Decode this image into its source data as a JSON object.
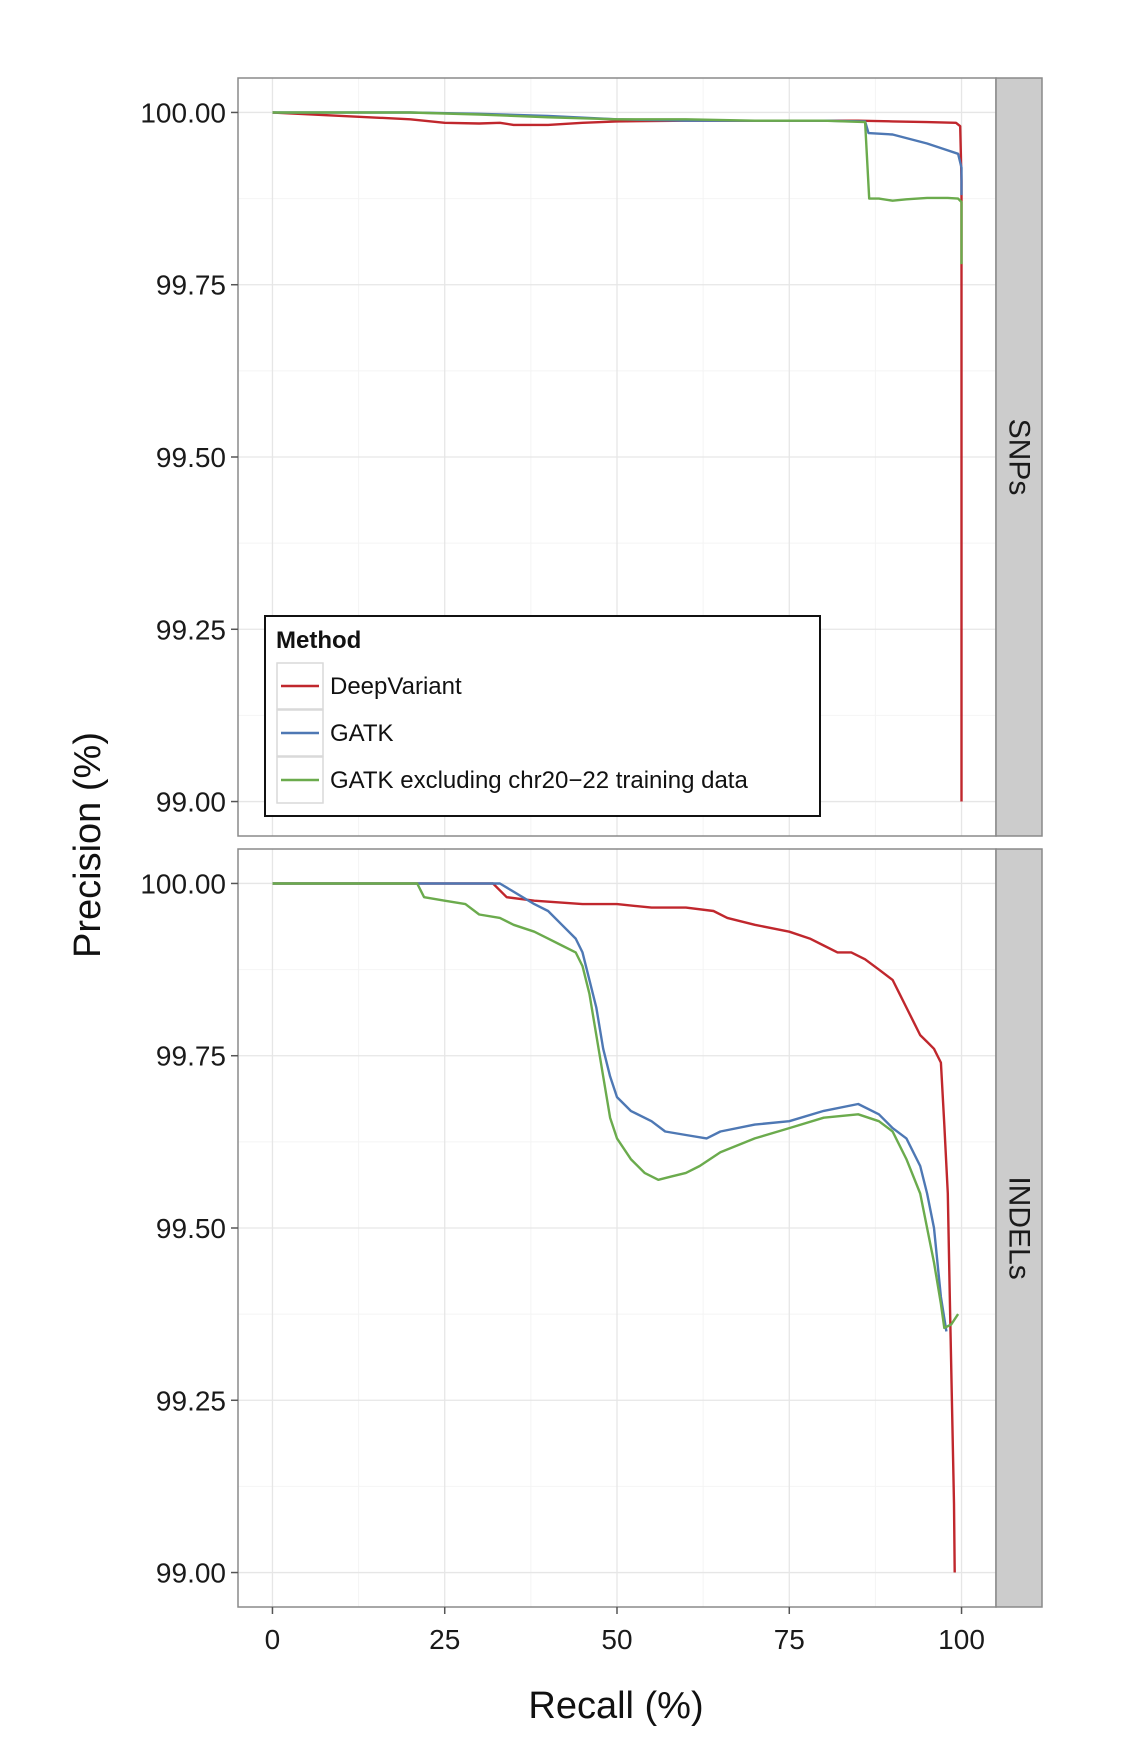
{
  "chart_data": {
    "type": "line",
    "xlabel": "Recall (%)",
    "ylabel": "Precision (%)",
    "xlim": [
      -5,
      105
    ],
    "ylim": [
      98.95,
      100.05
    ],
    "x_ticks": [
      "0",
      "25",
      "50",
      "75",
      "100"
    ],
    "y_ticks": [
      "99.00",
      "99.25",
      "99.50",
      "99.75",
      "100.00"
    ],
    "grid": true,
    "legend": {
      "title": "Method",
      "placement": "bottom-left of top panel",
      "entries": [
        "DeepVariant",
        "GATK",
        "GATK excluding chr20−22 training data"
      ]
    },
    "colors": {
      "DeepVariant": "#c0272d",
      "GATK": "#4e78b4",
      "GATK excluding chr20−22 training data": "#6bab4d",
      "strip": "#cccccc"
    },
    "panels": [
      {
        "strip_label": "SNPs",
        "series": [
          {
            "name": "DeepVariant",
            "x": [
              0,
              10,
              20,
              25,
              30,
              33,
              35,
              40,
              45,
              50,
              60,
              70,
              80,
              85,
              90,
              95,
              99.2,
              99.8,
              100,
              100,
              100
            ],
            "y": [
              100.0,
              99.995,
              99.99,
              99.985,
              99.984,
              99.985,
              99.982,
              99.982,
              99.985,
              99.987,
              99.988,
              99.988,
              99.988,
              99.988,
              99.987,
              99.986,
              99.985,
              99.98,
              99.9,
              99.5,
              99.0
            ]
          },
          {
            "name": "GATK",
            "x": [
              0,
              10,
              20,
              30,
              40,
              50,
              60,
              70,
              80,
              86,
              86.5,
              90,
              95,
              98,
              99.5,
              100,
              100
            ],
            "y": [
              100.0,
              100.0,
              100.0,
              99.998,
              99.995,
              99.99,
              99.988,
              99.988,
              99.988,
              99.987,
              99.97,
              99.968,
              99.955,
              99.945,
              99.94,
              99.92,
              99.88
            ]
          },
          {
            "name": "GATK excluding chr20−22 training data",
            "x": [
              0,
              10,
              20,
              30,
              40,
              50,
              60,
              70,
              80,
              86,
              86.6,
              88,
              90,
              92,
              95,
              98,
              99.5,
              100,
              100
            ],
            "y": [
              100.0,
              100.0,
              100.0,
              99.997,
              99.993,
              99.99,
              99.99,
              99.988,
              99.988,
              99.986,
              99.875,
              99.875,
              99.872,
              99.874,
              99.876,
              99.876,
              99.875,
              99.87,
              99.78
            ]
          }
        ]
      },
      {
        "strip_label": "INDELs",
        "series": [
          {
            "name": "DeepVariant",
            "x": [
              0,
              20,
              32,
              34,
              38,
              45,
              50,
              55,
              60,
              64,
              66,
              70,
              75,
              78,
              80,
              82,
              84,
              86,
              88,
              90,
              91,
              92,
              93,
              94,
              95,
              96,
              97,
              97.5,
              98,
              98.3,
              98.6,
              98.9,
              99.0
            ],
            "y": [
              100.0,
              100.0,
              100.0,
              99.98,
              99.975,
              99.97,
              99.97,
              99.965,
              99.965,
              99.96,
              99.95,
              99.94,
              99.93,
              99.92,
              99.91,
              99.9,
              99.9,
              99.89,
              99.875,
              99.86,
              99.84,
              99.82,
              99.8,
              99.78,
              99.77,
              99.76,
              99.74,
              99.65,
              99.55,
              99.4,
              99.25,
              99.1,
              99.0
            ]
          },
          {
            "name": "GATK",
            "x": [
              0,
              20,
              33,
              38,
              40,
              42,
              44,
              45,
              46,
              47,
              48,
              49,
              50,
              52,
              55,
              57,
              60,
              63,
              65,
              70,
              75,
              80,
              85,
              88,
              90,
              92,
              94,
              95,
              96,
              97,
              97.8
            ],
            "y": [
              100.0,
              100.0,
              100.0,
              99.97,
              99.96,
              99.94,
              99.92,
              99.9,
              99.86,
              99.82,
              99.76,
              99.72,
              99.69,
              99.67,
              99.655,
              99.64,
              99.635,
              99.63,
              99.64,
              99.65,
              99.655,
              99.67,
              99.68,
              99.665,
              99.645,
              99.63,
              99.59,
              99.55,
              99.5,
              99.4,
              99.35
            ]
          },
          {
            "name": "GATK excluding chr20−22 training data",
            "x": [
              0,
              21,
              22,
              25,
              28,
              30,
              33,
              35,
              38,
              40,
              42,
              44,
              45,
              46,
              47,
              48,
              49,
              50,
              52,
              54,
              56,
              58,
              60,
              62,
              65,
              70,
              75,
              80,
              85,
              88,
              90,
              92,
              94,
              95,
              96,
              97,
              97.5,
              98.5,
              99.5
            ],
            "y": [
              100.0,
              100.0,
              99.98,
              99.975,
              99.97,
              99.955,
              99.95,
              99.94,
              99.93,
              99.92,
              99.91,
              99.9,
              99.88,
              99.84,
              99.78,
              99.72,
              99.66,
              99.63,
              99.6,
              99.58,
              99.57,
              99.575,
              99.58,
              99.59,
              99.61,
              99.63,
              99.645,
              99.66,
              99.665,
              99.655,
              99.64,
              99.6,
              99.55,
              99.5,
              99.45,
              99.39,
              99.355,
              99.36,
              99.375
            ]
          }
        ]
      }
    ]
  }
}
